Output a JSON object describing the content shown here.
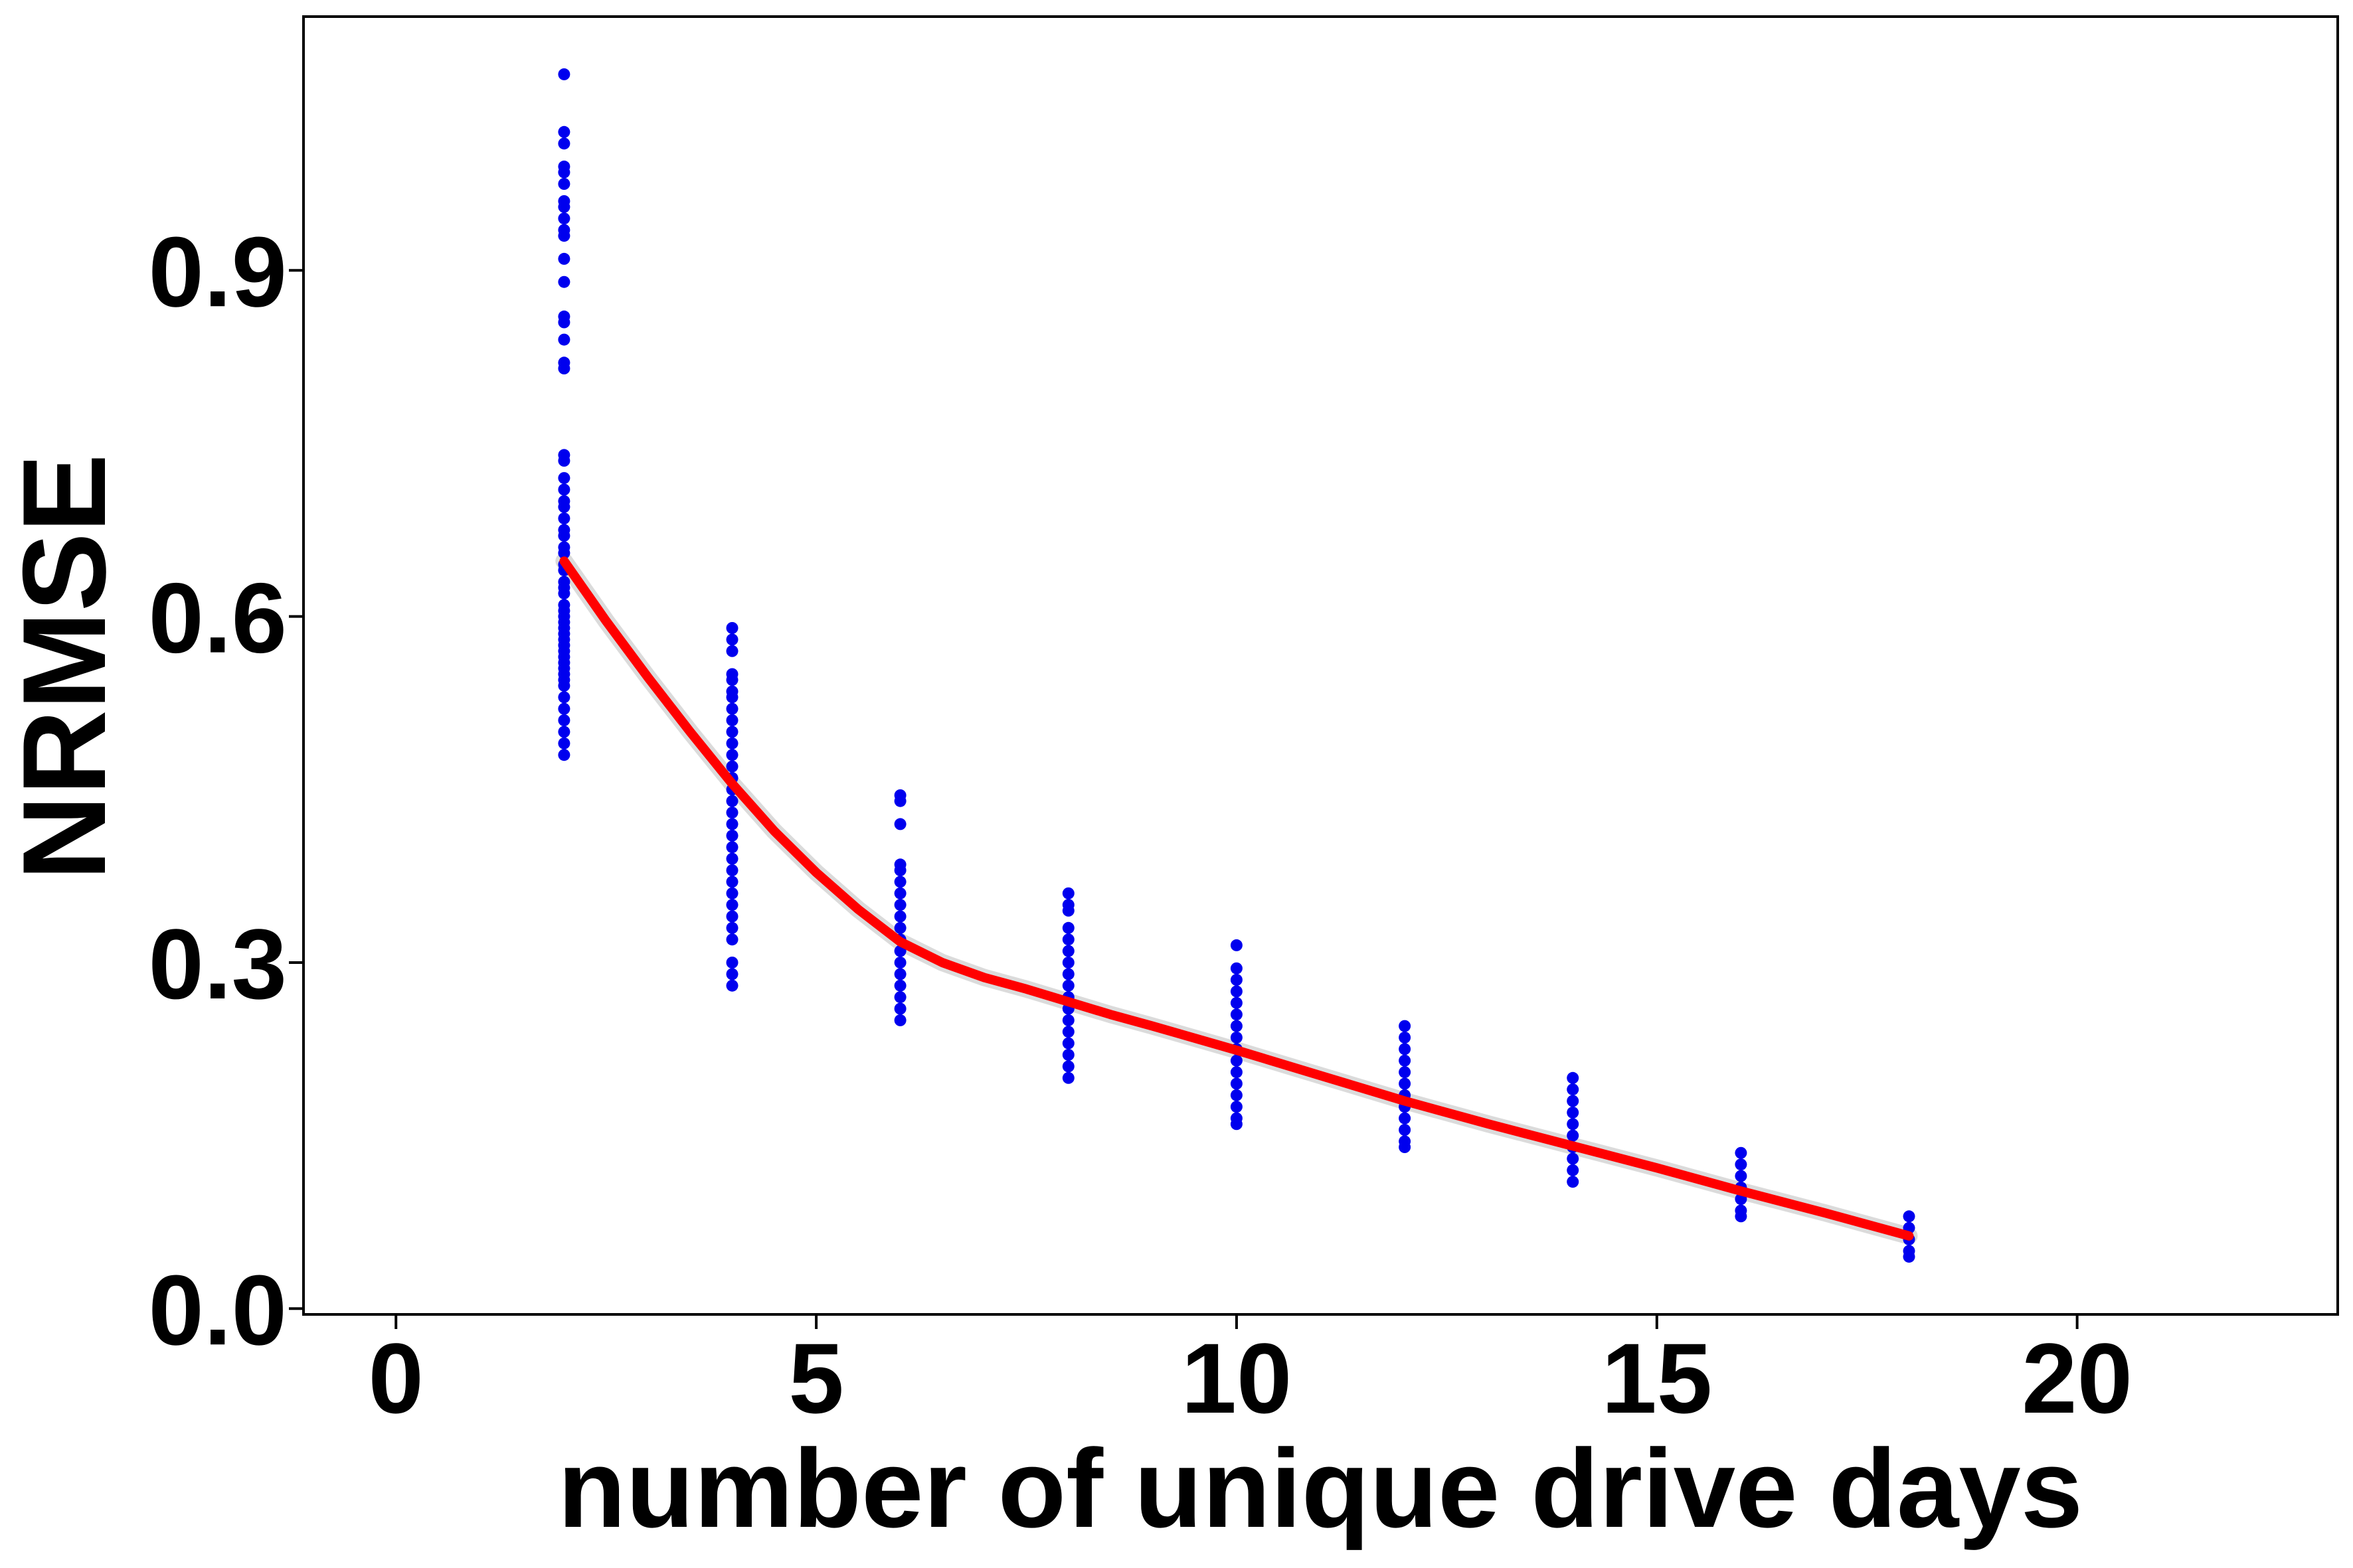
{
  "chart_data": {
    "type": "scatter",
    "title": "",
    "xlabel": "number of unique drive days",
    "ylabel": "NRMSE",
    "xlim": [
      -1.1,
      23.1
    ],
    "ylim": [
      -0.005,
      1.12
    ],
    "xticks": [
      0,
      5,
      10,
      15,
      20
    ],
    "xtick_labels": [
      "0",
      "5",
      "10",
      "15",
      "20"
    ],
    "yticks": [
      0.0,
      0.3,
      0.6,
      0.9
    ],
    "ytick_labels": [
      "0.0",
      "0.3",
      "0.6",
      "0.9"
    ],
    "grid": false,
    "legend": "none",
    "series": [
      {
        "type": "scatter",
        "color": "#0000ee",
        "groups": [
          {
            "x": 2,
            "y": [
              1.07,
              1.02,
              1.01,
              0.99,
              0.985,
              0.975,
              0.96,
              0.955,
              0.945,
              0.935,
              0.93,
              0.91,
              0.89,
              0.86,
              0.855,
              0.84,
              0.82,
              0.815,
              0.74,
              0.735,
              0.72,
              0.71,
              0.7,
              0.695,
              0.685,
              0.675,
              0.67,
              0.66,
              0.655,
              0.645,
              0.64,
              0.63,
              0.625,
              0.62,
              0.61,
              0.605,
              0.6,
              0.595,
              0.59,
              0.585,
              0.58,
              0.575,
              0.57,
              0.565,
              0.56,
              0.555,
              0.55,
              0.545,
              0.54,
              0.53,
              0.52,
              0.51,
              0.5,
              0.49,
              0.48
            ]
          },
          {
            "x": 4,
            "y": [
              0.59,
              0.58,
              0.57,
              0.55,
              0.545,
              0.535,
              0.53,
              0.52,
              0.51,
              0.5,
              0.49,
              0.48,
              0.47,
              0.46,
              0.45,
              0.44,
              0.43,
              0.42,
              0.41,
              0.4,
              0.39,
              0.38,
              0.37,
              0.36,
              0.35,
              0.34,
              0.33,
              0.32,
              0.3,
              0.29,
              0.28
            ]
          },
          {
            "x": 6,
            "y": [
              0.445,
              0.44,
              0.42,
              0.385,
              0.38,
              0.37,
              0.36,
              0.35,
              0.34,
              0.33,
              0.32,
              0.31,
              0.3,
              0.29,
              0.28,
              0.27,
              0.26,
              0.25
            ]
          },
          {
            "x": 8,
            "y": [
              0.36,
              0.35,
              0.345,
              0.33,
              0.32,
              0.31,
              0.3,
              0.29,
              0.28,
              0.27,
              0.26,
              0.25,
              0.24,
              0.23,
              0.22,
              0.21,
              0.2
            ]
          },
          {
            "x": 10,
            "y": [
              0.315,
              0.295,
              0.285,
              0.275,
              0.265,
              0.255,
              0.245,
              0.235,
              0.225,
              0.215,
              0.205,
              0.195,
              0.185,
              0.175,
              0.165,
              0.16
            ]
          },
          {
            "x": 12,
            "y": [
              0.245,
              0.235,
              0.225,
              0.215,
              0.205,
              0.195,
              0.185,
              0.175,
              0.165,
              0.155,
              0.145,
              0.14
            ]
          },
          {
            "x": 14,
            "y": [
              0.2,
              0.19,
              0.18,
              0.17,
              0.16,
              0.15,
              0.14,
              0.13,
              0.12,
              0.11
            ]
          },
          {
            "x": 16,
            "y": [
              0.135,
              0.125,
              0.115,
              0.105,
              0.095,
              0.085,
              0.08
            ]
          },
          {
            "x": 18,
            "y": [
              0.08,
              0.07,
              0.06,
              0.05,
              0.045
            ]
          }
        ]
      },
      {
        "type": "line",
        "color": "#ff0000",
        "band_color": "#cccccc",
        "x": [
          2,
          2.5,
          3,
          3.5,
          4,
          4.5,
          5,
          5.5,
          6,
          6.5,
          7,
          7.5,
          8,
          8.5,
          9,
          10,
          11,
          12,
          13,
          14,
          15,
          16,
          17,
          18
        ],
        "y": [
          0.648,
          0.596,
          0.547,
          0.5,
          0.455,
          0.414,
          0.378,
          0.346,
          0.318,
          0.3,
          0.287,
          0.277,
          0.266,
          0.255,
          0.245,
          0.224,
          0.202,
          0.18,
          0.16,
          0.141,
          0.122,
          0.102,
          0.083,
          0.063
        ]
      }
    ]
  }
}
